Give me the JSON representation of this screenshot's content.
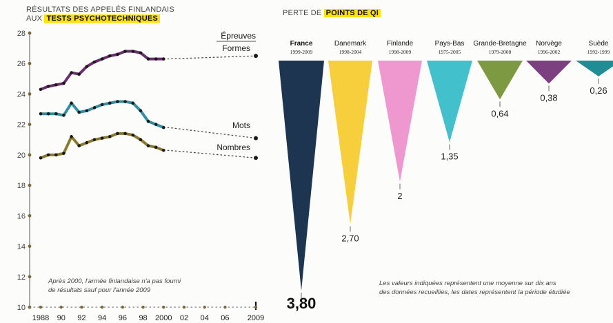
{
  "chart_data": [
    {
      "type": "line",
      "title_line1": "RÉSULTATS DES APPELÉS FINLANDAIS",
      "title_line2_prefix": "AUX ",
      "title_line2_highlight": "TESTS PSYCHOTECHNIQUES",
      "legend_title": "Épreuves",
      "ylim": [
        10,
        28
      ],
      "y_ticks": [
        10,
        12,
        14,
        16,
        18,
        20,
        22,
        24,
        26,
        28
      ],
      "x_range": [
        1988,
        2009
      ],
      "x_tick_labels": [
        "1988",
        "90",
        "92",
        "94",
        "96",
        "98",
        "2000",
        "02",
        "04",
        "06",
        "2009"
      ],
      "x_tick_values": [
        1988,
        1990,
        1992,
        1994,
        1996,
        1998,
        2000,
        2002,
        2004,
        2006,
        2009
      ],
      "x_years": [
        1988,
        1988.75,
        1989.5,
        1990.25,
        1991,
        1991.75,
        1992.5,
        1993.25,
        1994,
        1994.75,
        1995.5,
        1996.25,
        1997,
        1997.75,
        1998.5,
        1999.25,
        2000
      ],
      "series": [
        {
          "name": "Formes",
          "color": "#6a2e6e",
          "values": [
            24.3,
            24.5,
            24.6,
            24.7,
            25.4,
            25.3,
            25.8,
            26.1,
            26.3,
            26.5,
            26.6,
            26.8,
            26.8,
            26.7,
            26.3,
            26.3,
            26.3
          ],
          "y_2009": 26.5
        },
        {
          "name": "Mots",
          "color": "#2f8fa3",
          "values": [
            22.7,
            22.7,
            22.7,
            22.6,
            23.4,
            22.8,
            22.9,
            23.1,
            23.3,
            23.4,
            23.5,
            23.5,
            23.4,
            22.9,
            22.2,
            22.0,
            21.8
          ],
          "y_2009": 21.1
        },
        {
          "name": "Nombres",
          "color": "#8a7a2e",
          "values": [
            19.8,
            20.0,
            20.0,
            20.1,
            21.2,
            20.6,
            20.8,
            21.0,
            21.1,
            21.2,
            21.4,
            21.4,
            21.3,
            21.0,
            20.6,
            20.5,
            20.3
          ],
          "y_2009": 19.8
        }
      ],
      "annotation_line1": "Après 2000, l'armée finlandaise n'a pas fourni",
      "annotation_line2": "de résultats sauf pour l'année 2009"
    },
    {
      "type": "bar",
      "title_prefix": "PERTE DE ",
      "title_highlight": "POINTS DE QI",
      "categories": [
        "France",
        "Danemark",
        "Finlande",
        "Pays-Bas",
        "Grande-Bretagne",
        "Norvège",
        "Suède"
      ],
      "periods": [
        "1999-2009",
        "1998-2004",
        "1998-2009",
        "1975-2005",
        "1979-2008",
        "1996-2002",
        "1992-1999"
      ],
      "values": [
        3.8,
        2.7,
        2.0,
        1.35,
        0.64,
        0.38,
        0.26
      ],
      "value_labels": [
        "3,80",
        "2,70",
        "2",
        "1,35",
        "0,64",
        "0,38",
        "0,26"
      ],
      "colors": [
        "#1d3550",
        "#f7cf3c",
        "#ef98cf",
        "#42c1cc",
        "#7d9a43",
        "#7c3f80",
        "#1f8c96"
      ],
      "annotation_line1": "Les valeurs indiquées représentent une moyenne sur dix ans",
      "annotation_line2": "des données recueillies, les dates représentent la période étudiée"
    }
  ]
}
